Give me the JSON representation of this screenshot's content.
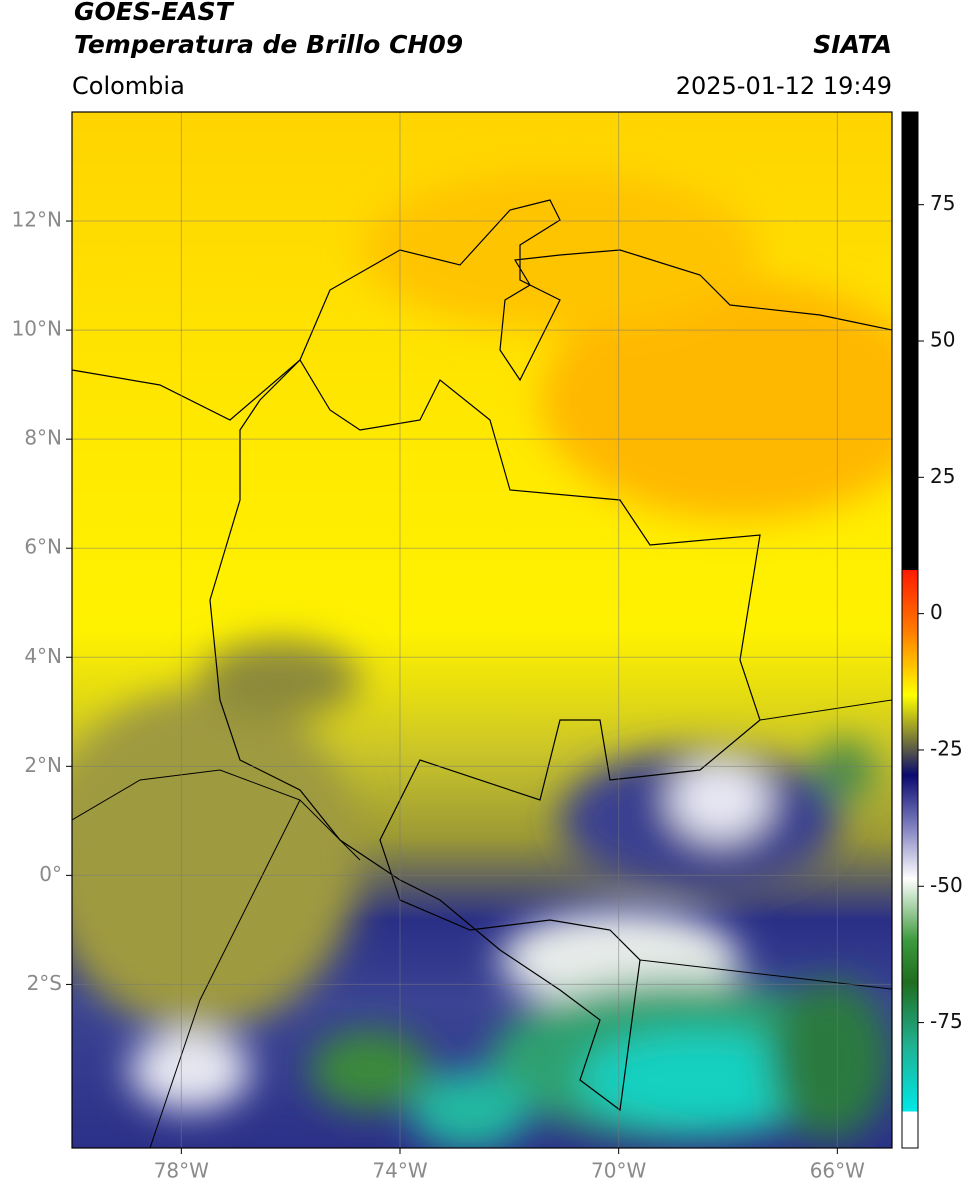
{
  "header": {
    "title": "GOES-EAST",
    "subtitle": "Temperatura de Brillo CH09",
    "source": "SIATA",
    "region": "Colombia",
    "datetime": "2025-01-12 19:49"
  },
  "map": {
    "lonlim": [
      -80,
      -65
    ],
    "latlim": [
      -5,
      14
    ],
    "grid": true,
    "lonticks": [
      {
        "value": -78,
        "label": "78°W"
      },
      {
        "value": -74,
        "label": "74°W"
      },
      {
        "value": -70,
        "label": "70°W"
      },
      {
        "value": -66,
        "label": "66°W"
      }
    ],
    "latticks": [
      {
        "value": 12,
        "label": "12°N"
      },
      {
        "value": 10,
        "label": "10°N"
      },
      {
        "value": 8,
        "label": "8°N"
      },
      {
        "value": 6,
        "label": "6°N"
      },
      {
        "value": 4,
        "label": "4°N"
      },
      {
        "value": 2,
        "label": "2°N"
      },
      {
        "value": 0,
        "label": "0°"
      },
      {
        "value": -2,
        "label": "2°S"
      }
    ]
  },
  "colorbar": {
    "lim": [
      -98,
      92
    ],
    "ticks": [
      75,
      50,
      25,
      0,
      -25,
      -50,
      -75
    ]
  }
}
